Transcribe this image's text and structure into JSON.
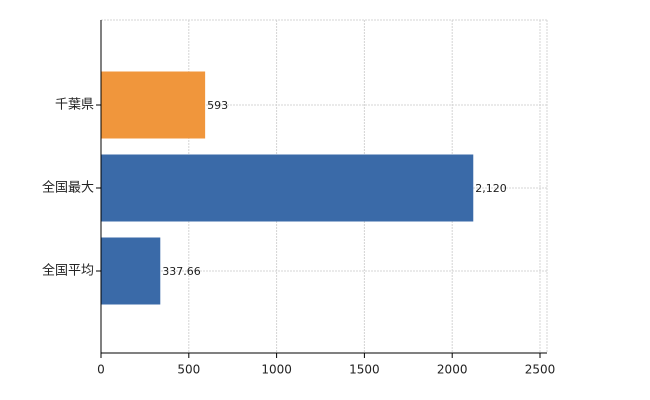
{
  "chart_data": {
    "type": "barh",
    "categories": [
      "千葉県",
      "全国最大",
      "全国平均"
    ],
    "values": [
      593,
      2120,
      337.66
    ],
    "value_labels": [
      "593",
      "2,120",
      "337.66"
    ],
    "colors": [
      "#f0963c",
      "#3a6aa8",
      "#3a6aa8"
    ],
    "xlim": [
      0,
      2500
    ],
    "xticks": [
      0,
      500,
      1000,
      1500,
      2000,
      2500
    ],
    "grid": true
  }
}
